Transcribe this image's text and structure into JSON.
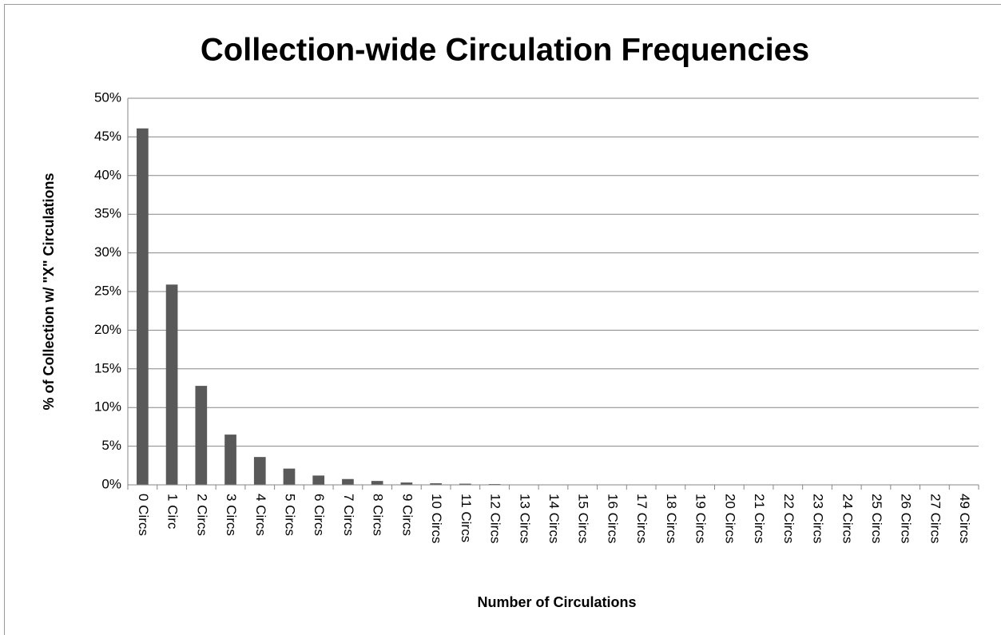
{
  "chart_data": {
    "type": "bar",
    "title": "Collection-wide Circulation Frequencies",
    "x_label": "Number of Circulations",
    "y_label": "% of Collection w/ \"X\" Circulations",
    "categories": [
      "0 Circs",
      "1 Circ",
      "2 Circs",
      "3 Circs",
      "4 Circs",
      "5 Circs",
      "6 Circs",
      "7 Circs",
      "8 Circs",
      "9 Circs",
      "10 Circs",
      "11 Circs",
      "12 Circs",
      "13 Circs",
      "14 Circs",
      "15 Circs",
      "16 Circs",
      "17 Circs",
      "18 Circs",
      "19 Circs",
      "20 Circs",
      "21 Circs",
      "22 Circs",
      "23 Circs",
      "24 Circs",
      "25 Circs",
      "26 Circs",
      "27 Circs",
      "49 Circs"
    ],
    "values": [
      46.1,
      25.9,
      12.8,
      6.5,
      3.6,
      2.1,
      1.2,
      0.75,
      0.5,
      0.3,
      0.2,
      0.15,
      0.1,
      0.05,
      0.03,
      0.02,
      0.02,
      0.02,
      0.01,
      0.01,
      0.01,
      0.01,
      0.01,
      0.01,
      0.01,
      0.01,
      0.01,
      0.01,
      0.01
    ],
    "color": "#595959",
    "ylim": [
      0,
      50
    ],
    "yticks": [
      {
        "value": 0,
        "label": "0%"
      },
      {
        "value": 5,
        "label": "5%"
      },
      {
        "value": 10,
        "label": "10%"
      },
      {
        "value": 15,
        "label": "15%"
      },
      {
        "value": 20,
        "label": "20%"
      },
      {
        "value": 25,
        "label": "25%"
      },
      {
        "value": 30,
        "label": "30%"
      },
      {
        "value": 35,
        "label": "35%"
      },
      {
        "value": 40,
        "label": "40%"
      },
      {
        "value": 45,
        "label": "45%"
      },
      {
        "value": 50,
        "label": "50%"
      }
    ],
    "grid": true
  }
}
